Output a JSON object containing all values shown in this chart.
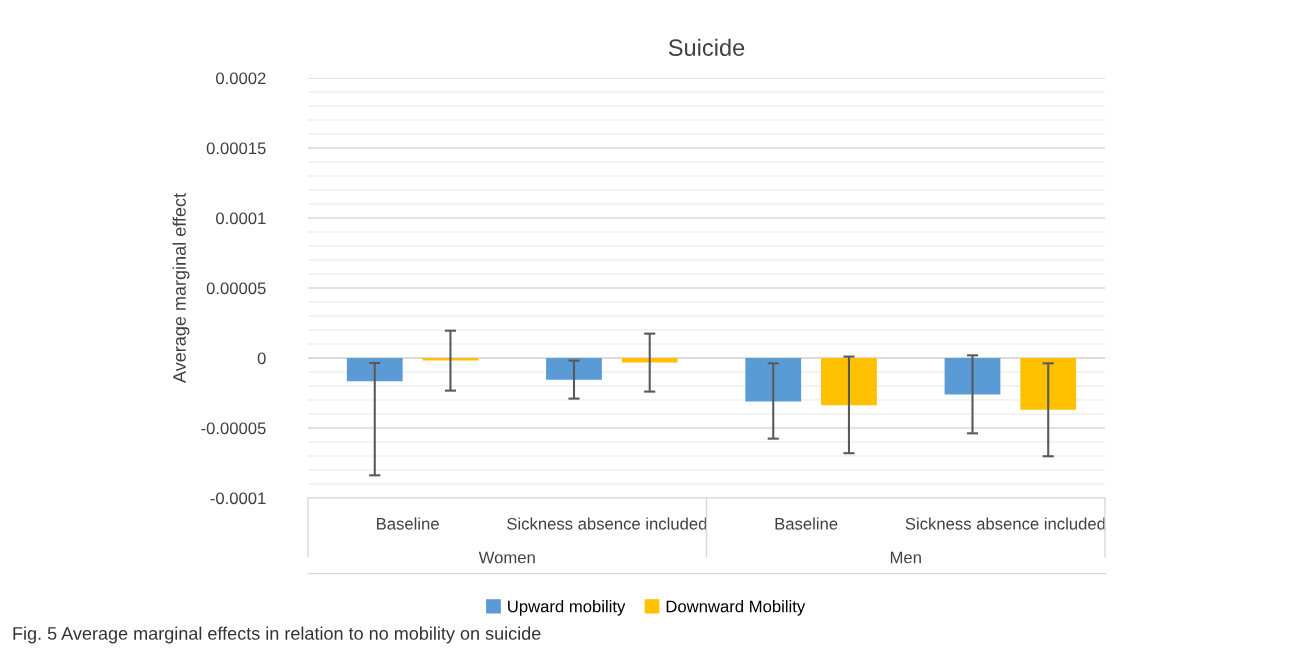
{
  "chart_data": {
    "type": "bar",
    "title": "Suicide",
    "ylabel": "Average marginal effect",
    "categories": [
      "Baseline",
      "Sickness absence included",
      "Baseline",
      "Sickness absence included"
    ],
    "series": [
      {
        "name": "Upward mobility",
        "color": "#5b9bd5",
        "values": [
          -1.66e-05,
          -1.55e-05,
          -3.1e-05,
          -2.6e-05
        ],
        "errors": [
          [
            -8.38e-05,
            -3.6e-06
          ],
          [
            -2.9e-05,
            -1.9e-06
          ],
          [
            -5.76e-05,
            -3.8e-06
          ],
          [
            -5.38e-05,
            1.9e-06
          ]
        ]
      },
      {
        "name": "Downward Mobility",
        "color": "#ffc000",
        "values": [
          -1.7e-06,
          -3.3e-06,
          -3.38e-05,
          -3.69e-05
        ],
        "errors": [
          [
            -2.33e-05,
            1.95e-05
          ],
          [
            -2.4e-05,
            1.74e-05
          ],
          [
            -6.8e-05,
            1e-06
          ],
          [
            -7.02e-05,
            -3.8e-06
          ]
        ]
      }
    ],
    "ylim": [
      -0.0001,
      0.0002
    ],
    "yticks": [
      {
        "value": -0.0001,
        "label": "-0.0001"
      },
      {
        "value": -9e-05,
        "label": null
      },
      {
        "value": -8e-05,
        "label": null
      },
      {
        "value": -7e-05,
        "label": null
      },
      {
        "value": -6e-05,
        "label": null
      },
      {
        "value": -5e-05,
        "label": "-0.00005"
      },
      {
        "value": -4e-05,
        "label": null
      },
      {
        "value": -3e-05,
        "label": null
      },
      {
        "value": -2e-05,
        "label": null
      },
      {
        "value": -1e-05,
        "label": null
      },
      {
        "value": 0,
        "label": "0"
      },
      {
        "value": 1e-05,
        "label": null
      },
      {
        "value": 2e-05,
        "label": null
      },
      {
        "value": 3e-05,
        "label": null
      },
      {
        "value": 4e-05,
        "label": null
      },
      {
        "value": 5e-05,
        "label": "0.00005"
      },
      {
        "value": 6e-05,
        "label": null
      },
      {
        "value": 7e-05,
        "label": null
      },
      {
        "value": 8e-05,
        "label": null
      },
      {
        "value": 9e-05,
        "label": null
      },
      {
        "value": 0.0001,
        "label": "0.0001"
      },
      {
        "value": 0.00011,
        "label": null
      },
      {
        "value": 0.00012,
        "label": null
      },
      {
        "value": 0.00013,
        "label": null
      },
      {
        "value": 0.00014,
        "label": null
      },
      {
        "value": 0.00015,
        "label": "0.00015"
      },
      {
        "value": 0.00016,
        "label": null
      },
      {
        "value": 0.00017,
        "label": null
      },
      {
        "value": 0.00018,
        "label": null
      },
      {
        "value": 0.00019,
        "label": null
      },
      {
        "value": 0.0002,
        "label": "0.0002"
      }
    ],
    "grid": "y",
    "legend": "bottom",
    "annotations": [
      "Women",
      "Men",
      "Fig. 5 Average marginal effects in relation to no mobility on suicide"
    ]
  }
}
